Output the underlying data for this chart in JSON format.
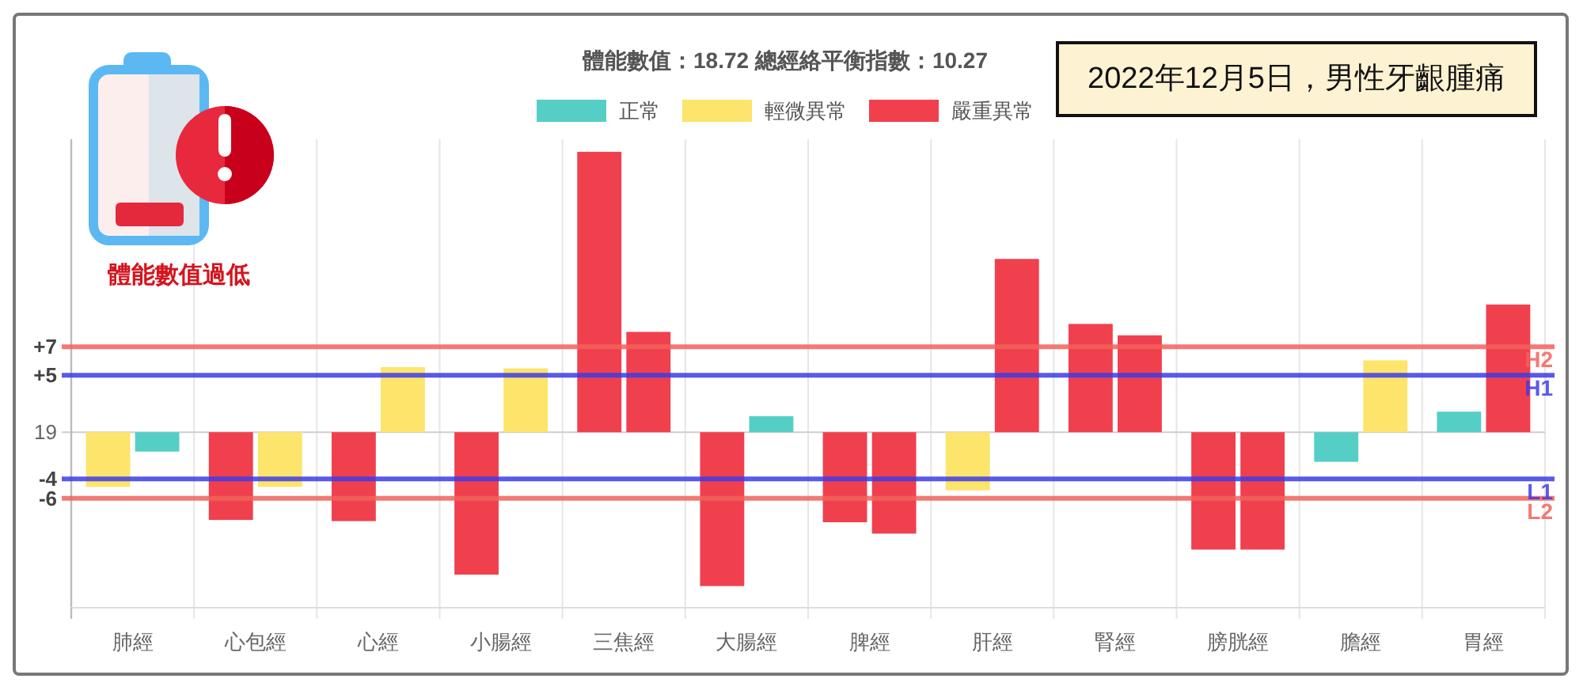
{
  "chart_data": {
    "type": "bar",
    "title": "體能數值：18.72 總經絡平衡指數：10.27",
    "categories": [
      "肺經",
      "心包經",
      "心經",
      "小腸經",
      "三焦經",
      "大腸經",
      "脾經",
      "肝經",
      "腎經",
      "膀胱經",
      "膽經",
      "胃經"
    ],
    "series": [
      {
        "values": [
          -4.8,
          -7.7,
          -7.8,
          -12.5,
          24.6,
          -13.5,
          -7.9,
          -5.1,
          9.5,
          -10.3,
          -2.6,
          1.8
        ],
        "colors": [
          "#fde46b",
          "#f0404e",
          "#f0404e",
          "#f0404e",
          "#f0404e",
          "#f0404e",
          "#f0404e",
          "#fde46b",
          "#f0404e",
          "#f0404e",
          "#55cfc5",
          "#55cfc5"
        ]
      },
      {
        "values": [
          -1.7,
          -4.8,
          5.7,
          5.6,
          8.8,
          1.4,
          -8.9,
          15.2,
          8.5,
          -10.3,
          6.3,
          11.2
        ],
        "colors": [
          "#55cfc5",
          "#fde46b",
          "#fde46b",
          "#fde46b",
          "#f0404e",
          "#55cfc5",
          "#f0404e",
          "#f0404e",
          "#f0404e",
          "#f0404e",
          "#fde46b",
          "#f0404e"
        ]
      },
      {
        "name": "正常",
        "color": "#55cfc5",
        "values": [
          null,
          null,
          null,
          null,
          null,
          null,
          null,
          null,
          null,
          null,
          null,
          null
        ]
      },
      {
        "name": "輕微異常",
        "color": "#fde46b",
        "values": [
          null,
          null,
          null,
          null,
          null,
          null,
          null,
          null,
          null,
          null,
          null,
          null
        ]
      },
      {
        "name": "嚴重異常",
        "color": "#f0404e",
        "values": [
          null,
          null,
          null,
          null,
          null,
          null,
          null,
          null,
          null,
          null,
          null,
          null
        ]
      }
    ],
    "ylim": [
      -15.4,
      25.7
    ],
    "yticks": [
      {
        "value": 7.5,
        "label": "+7"
      },
      {
        "value": 5,
        "label": "+5"
      },
      {
        "value": 0,
        "label": null
      },
      {
        "value": -4.1,
        "label": "-4"
      },
      {
        "value": -5.8,
        "label": "-6"
      }
    ],
    "ref_lines": [
      {
        "axis": "y",
        "value": 7.5,
        "label": "H2",
        "color": "#f2625c"
      },
      {
        "axis": "y",
        "value": 5,
        "label": "H1",
        "color": "#3c3ce6"
      },
      {
        "axis": "y",
        "value": -4.1,
        "label": "L1",
        "color": "#3c3ce6"
      },
      {
        "axis": "y",
        "value": -5.8,
        "label": "L2",
        "color": "#f2625c"
      }
    ],
    "grid": true,
    "legend": "top",
    "annotations": [
      "2022年12月5日，男性牙齦腫痛",
      "體能數值過低",
      "19"
    ]
  }
}
